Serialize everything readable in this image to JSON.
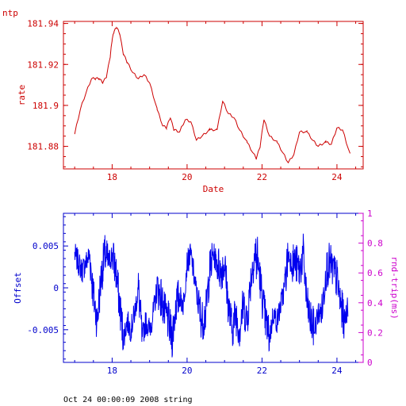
{
  "corner_label": "ntp",
  "footer": "Oct 24 00:00:09 2008 string",
  "colors": {
    "top": "#cc0000",
    "bottom": "#0000ee",
    "right_axis": "#cc00cc"
  },
  "chart_data": [
    {
      "type": "line",
      "xlabel": "Date",
      "ylabel": "rate",
      "xlim": [
        16.7,
        24.7
      ],
      "ylim": [
        181.869,
        181.941
      ],
      "xticks": [
        18,
        20,
        22,
        24
      ],
      "yticks": [
        181.88,
        181.9,
        181.92,
        181.94
      ],
      "ytick_labels": [
        "181.88",
        "181.9",
        "181.92",
        "181.94"
      ],
      "series": [
        {
          "x": [
            17.0,
            17.15,
            17.3,
            17.45,
            17.55,
            17.65,
            17.75,
            17.85,
            17.95,
            18.0,
            18.05,
            18.12,
            18.2,
            18.3,
            18.4,
            18.55,
            18.7,
            18.85,
            19.0,
            19.2,
            19.35,
            19.45,
            19.55,
            19.65,
            19.8,
            19.95,
            20.1,
            20.25,
            20.4,
            20.6,
            20.8,
            20.95,
            21.1,
            21.25,
            21.4,
            21.6,
            21.75,
            21.85,
            21.95,
            22.05,
            22.2,
            22.4,
            22.55,
            22.7,
            22.85,
            23.0,
            23.2,
            23.35,
            23.5,
            23.7,
            23.85,
            24.0,
            24.15,
            24.35
          ],
          "y": [
            181.886,
            181.898,
            181.906,
            181.913,
            181.913,
            181.913,
            181.911,
            181.914,
            181.924,
            181.932,
            181.936,
            181.938,
            181.935,
            181.925,
            181.921,
            181.916,
            181.913,
            181.915,
            181.911,
            181.898,
            181.89,
            181.889,
            181.894,
            181.888,
            181.887,
            181.893,
            181.892,
            181.883,
            181.885,
            181.888,
            181.888,
            181.902,
            181.896,
            181.894,
            181.888,
            181.882,
            181.877,
            181.874,
            181.88,
            181.893,
            181.885,
            181.882,
            181.877,
            181.872,
            181.876,
            181.887,
            181.887,
            181.883,
            181.88,
            181.882,
            181.881,
            181.889,
            181.888,
            181.876
          ]
        }
      ]
    },
    {
      "type": "line",
      "xlabel": "",
      "ylabel": "Offset",
      "y2label": "rnd-trip(ms)",
      "xlim": [
        16.7,
        24.7
      ],
      "ylim": [
        -0.0089,
        0.0089
      ],
      "y2lim": [
        0,
        1
      ],
      "xticks": [
        18,
        20,
        22,
        24
      ],
      "yticks": [
        -0.005,
        0,
        0.005
      ],
      "ytick_labels": [
        "-0.005",
        "0",
        "0.005"
      ],
      "y2ticks": [
        0,
        0.2,
        0.4,
        0.6,
        0.8,
        1
      ],
      "y2tick_labels": [
        "0",
        "0.2",
        "0.4",
        "0.6",
        "0.8",
        "1"
      ],
      "series": [
        {
          "x": [
            17.0,
            17.1,
            17.2,
            17.3,
            17.4,
            17.5,
            17.6,
            17.7,
            17.8,
            17.9,
            18.0,
            18.1,
            18.2,
            18.3,
            18.4,
            18.5,
            18.6,
            18.7,
            18.8,
            18.9,
            19.0,
            19.1,
            19.2,
            19.3,
            19.4,
            19.5,
            19.6,
            19.7,
            19.8,
            19.9,
            20.0,
            20.1,
            20.2,
            20.3,
            20.4,
            20.5,
            20.6,
            20.7,
            20.8,
            20.9,
            21.0,
            21.1,
            21.2,
            21.3,
            21.4,
            21.5,
            21.6,
            21.7,
            21.8,
            21.9,
            22.0,
            22.1,
            22.2,
            22.3,
            22.4,
            22.5,
            22.6,
            22.7,
            22.8,
            22.9,
            23.0,
            23.1,
            23.2,
            23.3,
            23.4,
            23.5,
            23.6,
            23.7,
            23.8,
            23.9,
            24.0,
            24.1,
            24.2,
            24.3
          ],
          "y": [
            0.004,
            0.003,
            0.002,
            0.003,
            0.004,
            -0.001,
            -0.004,
            0.001,
            0.004,
            0.003,
            0.004,
            0.002,
            -0.002,
            -0.006,
            -0.004,
            -0.005,
            -0.003,
            0.0,
            -0.006,
            -0.004,
            -0.005,
            -0.003,
            0.0,
            -0.001,
            -0.003,
            -0.004,
            -0.006,
            -0.002,
            -0.001,
            -0.002,
            0.003,
            0.004,
            0.001,
            -0.002,
            -0.004,
            -0.003,
            0.002,
            0.004,
            0.003,
            0.002,
            0.003,
            -0.002,
            -0.005,
            -0.003,
            -0.005,
            -0.002,
            -0.004,
            0.001,
            0.004,
            0.003,
            -0.001,
            -0.004,
            -0.006,
            -0.003,
            -0.004,
            -0.002,
            0.0,
            0.004,
            0.003,
            0.003,
            0.002,
            0.004,
            -0.002,
            -0.004,
            -0.005,
            -0.003,
            -0.003,
            0.002,
            0.003,
            0.002,
            0.001,
            -0.002,
            -0.004,
            -0.002
          ],
          "spread": [
            0.0015,
            0.0015,
            0.0015,
            0.0015,
            0.0025,
            0.0025,
            0.0025,
            0.0025,
            0.0025,
            0.0015,
            0.0025,
            0.0025,
            0.0025,
            0.0015,
            0.0015,
            0.0015,
            0.0015,
            0.0025,
            0.0015,
            0.0015,
            0.0015,
            0.0015,
            0.0025,
            0.0025,
            0.0025,
            0.0025,
            0.0025,
            0.0025,
            0.0015,
            0.0015,
            0.0015,
            0.0015,
            0.0015,
            0.0025,
            0.0025,
            0.0025,
            0.0025,
            0.0015,
            0.0025,
            0.0025,
            0.0025,
            0.0025,
            0.0025,
            0.0025,
            0.0025,
            0.0025,
            0.0025,
            0.0025,
            0.0035,
            0.0025,
            0.0025,
            0.0025,
            0.0015,
            0.0015,
            0.0015,
            0.0015,
            0.0025,
            0.0015,
            0.0025,
            0.0025,
            0.0025,
            0.0025,
            0.0025,
            0.0025,
            0.0015,
            0.0015,
            0.0025,
            0.0025,
            0.0025,
            0.0025,
            0.0025,
            0.0025,
            0.0015,
            0.0015
          ]
        }
      ]
    }
  ]
}
